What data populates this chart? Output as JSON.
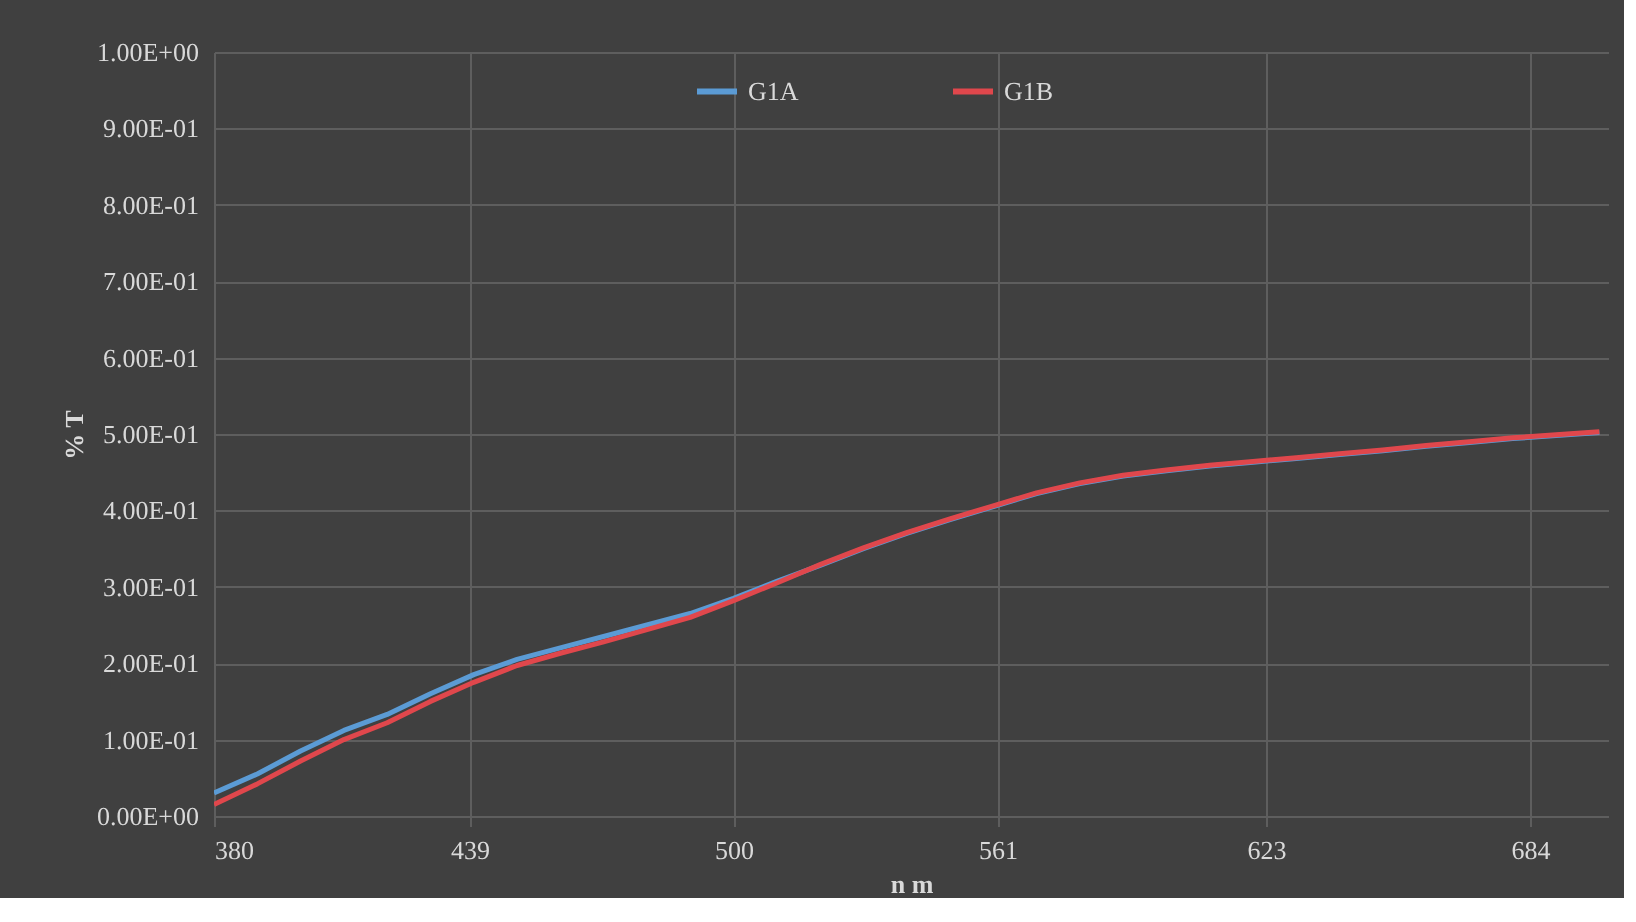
{
  "chart_data": {
    "type": "line",
    "xlabel": "n m",
    "ylabel": "% T",
    "xlim": [
      380,
      702
    ],
    "xticks": [
      380,
      439,
      500,
      561,
      623,
      684
    ],
    "ylim": [
      0,
      1
    ],
    "yticks": [
      {
        "value": 0,
        "label": "0.00E+00"
      },
      {
        "value": 0.1,
        "label": "1.00E-01"
      },
      {
        "value": 0.2,
        "label": "2.00E-01"
      },
      {
        "value": 0.3,
        "label": "3.00E-01"
      },
      {
        "value": 0.4,
        "label": "4.00E-01"
      },
      {
        "value": 0.5,
        "label": "5.00E-01"
      },
      {
        "value": 0.6,
        "label": "6.00E-01"
      },
      {
        "value": 0.7,
        "label": "7.00E-01"
      },
      {
        "value": 0.8,
        "label": "8.00E-01"
      },
      {
        "value": 0.9,
        "label": "9.00E-01"
      },
      {
        "value": 1,
        "label": "1.00E+00"
      }
    ],
    "grid": true,
    "legend": "top",
    "marker": "none",
    "line_style": "solid",
    "x": [
      380,
      390,
      400,
      410,
      420,
      430,
      440,
      450,
      460,
      470,
      480,
      490,
      500,
      510,
      520,
      530,
      540,
      550,
      560,
      570,
      580,
      590,
      600,
      610,
      620,
      630,
      640,
      650,
      660,
      670,
      680,
      690,
      700
    ],
    "series": [
      {
        "name": "G1A",
        "color": "#5b9bd5",
        "values": [
          0.03,
          0.055,
          0.085,
          0.112,
          0.133,
          0.16,
          0.185,
          0.205,
          0.22,
          0.235,
          0.25,
          0.265,
          0.285,
          0.307,
          0.328,
          0.35,
          0.37,
          0.388,
          0.405,
          0.422,
          0.435,
          0.445,
          0.452,
          0.458,
          0.463,
          0.468,
          0.473,
          0.478,
          0.484,
          0.489,
          0.494,
          0.498,
          0.502
        ]
      },
      {
        "name": "G1B",
        "color": "#e0474c",
        "values": [
          0.015,
          0.042,
          0.072,
          0.1,
          0.122,
          0.15,
          0.175,
          0.197,
          0.213,
          0.228,
          0.244,
          0.26,
          0.282,
          0.305,
          0.329,
          0.351,
          0.371,
          0.389,
          0.406,
          0.423,
          0.436,
          0.446,
          0.453,
          0.459,
          0.464,
          0.469,
          0.474,
          0.479,
          0.485,
          0.49,
          0.495,
          0.499,
          0.503
        ]
      }
    ]
  }
}
